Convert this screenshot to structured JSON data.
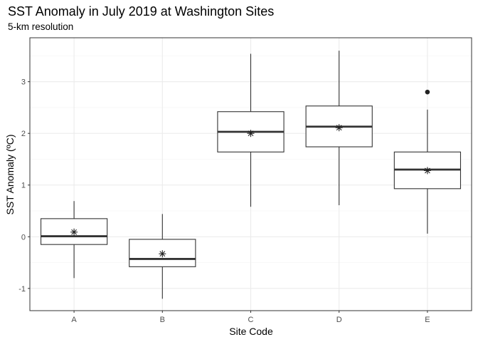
{
  "chart_data": {
    "type": "boxplot",
    "title": "SST Anomaly in July 2019 at Washington Sites",
    "subtitle": "5-km resolution",
    "xlabel": "Site Code",
    "ylabel": "SST Anomaly (ºC)",
    "ylim": [
      -1.43,
      3.85
    ],
    "yticks": [
      -1,
      0,
      1,
      2,
      3
    ],
    "ytick_labels": [
      "-1",
      "0",
      "1",
      "2",
      "3"
    ],
    "grid": true,
    "categories": [
      "A",
      "B",
      "C",
      "D",
      "E"
    ],
    "boxes": [
      {
        "category": "A",
        "min": -0.8,
        "q1": -0.15,
        "median": 0.01,
        "q3": 0.35,
        "max": 0.69,
        "mean": 0.09,
        "outliers": []
      },
      {
        "category": "B",
        "min": -1.2,
        "q1": -0.58,
        "median": -0.43,
        "q3": -0.05,
        "max": 0.44,
        "mean": -0.33,
        "outliers": []
      },
      {
        "category": "C",
        "min": 0.58,
        "q1": 1.64,
        "median": 2.03,
        "q3": 2.42,
        "max": 3.54,
        "mean": 2.0,
        "outliers": []
      },
      {
        "category": "D",
        "min": 0.61,
        "q1": 1.74,
        "median": 2.13,
        "q3": 2.53,
        "max": 3.6,
        "mean": 2.11,
        "outliers": []
      },
      {
        "category": "E",
        "min": 0.06,
        "q1": 0.93,
        "median": 1.3,
        "q3": 1.64,
        "max": 2.46,
        "mean": 1.28,
        "outliers": [
          2.8
        ]
      }
    ],
    "colors": {
      "box_fill": "#ffffff",
      "box_line": "#333333",
      "panel_border": "#333333",
      "grid_major": "#ebebeb",
      "grid_minor": "#f5f5f5"
    }
  }
}
